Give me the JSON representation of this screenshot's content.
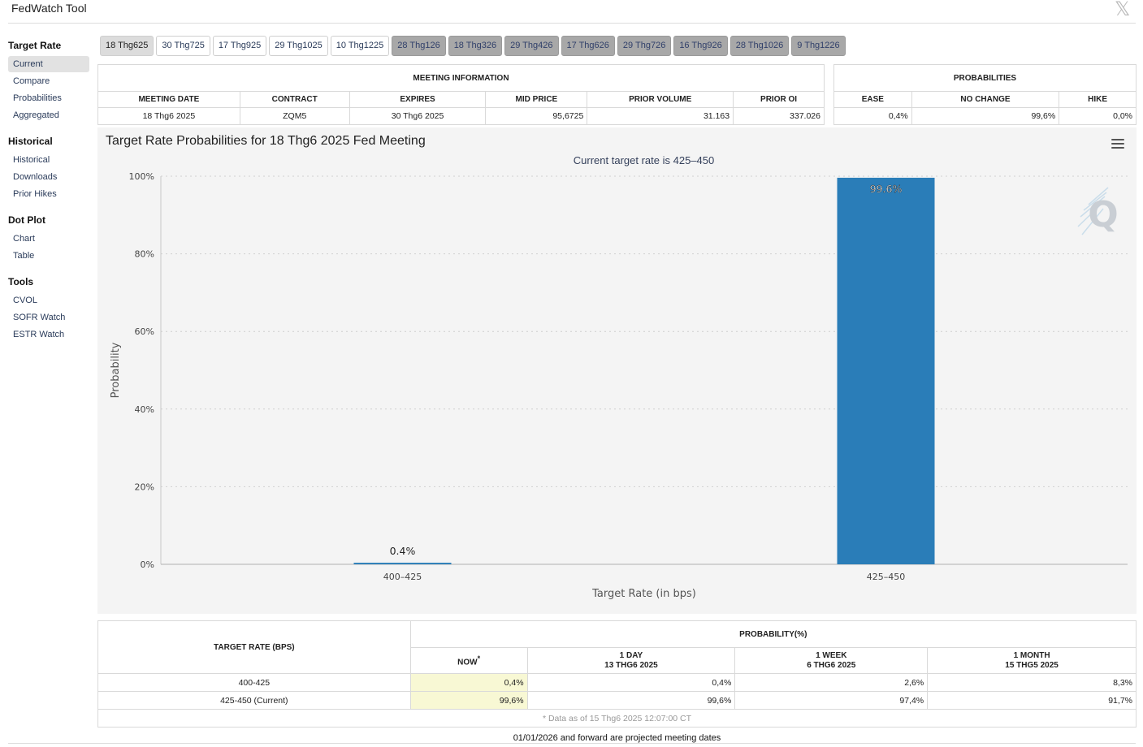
{
  "app": {
    "title": "FedWatch Tool",
    "close_symbol": "𝕏"
  },
  "sidebar": {
    "sections": [
      {
        "title": "Target Rate",
        "items": [
          "Current",
          "Compare",
          "Probabilities",
          "Aggregated"
        ]
      },
      {
        "title": "Historical",
        "items": [
          "Historical",
          "Downloads",
          "Prior Hikes"
        ]
      },
      {
        "title": "Dot Plot",
        "items": [
          "Chart",
          "Table"
        ]
      },
      {
        "title": "Tools",
        "items": [
          "CVOL",
          "SOFR Watch",
          "ESTR Watch"
        ]
      }
    ],
    "active_item": "Current"
  },
  "meeting_tabs": [
    {
      "label": "18 Thg625",
      "state": "selected"
    },
    {
      "label": "30 Thg725",
      "state": "normal"
    },
    {
      "label": "17 Thg925",
      "state": "normal"
    },
    {
      "label": "29 Thg1025",
      "state": "normal"
    },
    {
      "label": "10 Thg1225",
      "state": "normal"
    },
    {
      "label": "28 Thg126",
      "state": "grey"
    },
    {
      "label": "18 Thg326",
      "state": "grey"
    },
    {
      "label": "29 Thg426",
      "state": "grey"
    },
    {
      "label": "17 Thg626",
      "state": "grey"
    },
    {
      "label": "29 Thg726",
      "state": "grey"
    },
    {
      "label": "16 Thg926",
      "state": "grey"
    },
    {
      "label": "28 Thg1026",
      "state": "grey"
    },
    {
      "label": "9 Thg1226",
      "state": "grey"
    }
  ],
  "meeting_info": {
    "header": "MEETING INFORMATION",
    "columns": [
      "MEETING DATE",
      "CONTRACT",
      "EXPIRES",
      "MID PRICE",
      "PRIOR VOLUME",
      "PRIOR OI"
    ],
    "row": [
      "18 Thg6 2025",
      "ZQM5",
      "30 Thg6 2025",
      "95,6725",
      "31.163",
      "337.026"
    ]
  },
  "probabilities": {
    "header": "PROBABILITIES",
    "columns": [
      "EASE",
      "NO CHANGE",
      "HIKE"
    ],
    "row": [
      "0,4%",
      "99,6%",
      "0,0%"
    ]
  },
  "chart": {
    "title": "Target Rate Probabilities for 18 Thg6 2025 Fed Meeting",
    "subtitle": "Current target rate is 425–450",
    "menu_icon": "hamburger-menu-icon",
    "watermark": "Q",
    "bar_color": "#2a7db8"
  },
  "chart_data": {
    "type": "bar",
    "categories": [
      "400–425",
      "425–450"
    ],
    "values": [
      0.4,
      99.6
    ],
    "data_labels": [
      "0.4%",
      "99.6%"
    ],
    "title": "Target Rate Probabilities for 18 Thg6 2025 Fed Meeting",
    "subtitle": "Current target rate is 425–450",
    "xlabel": "Target Rate (in bps)",
    "ylabel": "Probability",
    "ylim": [
      0,
      100
    ],
    "yticks": [
      "0%",
      "20%",
      "40%",
      "60%",
      "80%",
      "100%"
    ],
    "grid": true,
    "legend": "none"
  },
  "prob_table": {
    "rate_header": "TARGET RATE (BPS)",
    "prob_header": "PROBABILITY(%)",
    "sub_headers": [
      {
        "line1": "NOW",
        "line2": "",
        "marker": "*"
      },
      {
        "line1": "1 DAY",
        "line2": "13 THG6 2025",
        "marker": ""
      },
      {
        "line1": "1 WEEK",
        "line2": "6 THG6 2025",
        "marker": ""
      },
      {
        "line1": "1 MONTH",
        "line2": "15 THG5 2025",
        "marker": ""
      }
    ],
    "rows": [
      {
        "rate": "400-425",
        "values": [
          "0,4%",
          "0,4%",
          "2,6%",
          "8,3%"
        ]
      },
      {
        "rate": "425-450 (Current)",
        "values": [
          "99,6%",
          "99,6%",
          "97,4%",
          "91,7%"
        ]
      }
    ],
    "footnote": "* Data as of 15 Thg6 2025 12:07:00 CT",
    "now_highlight_color": "#f8f8d4"
  },
  "footer": {
    "note": "01/01/2026 and forward are projected meeting dates"
  }
}
